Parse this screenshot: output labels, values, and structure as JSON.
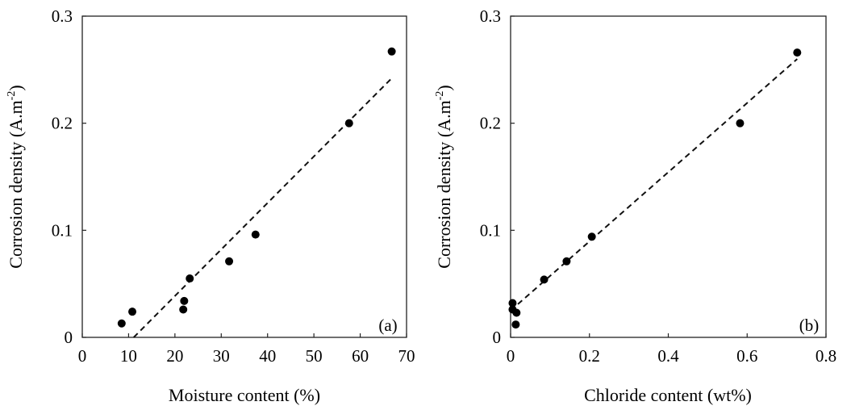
{
  "chart_data": [
    {
      "type": "scatter",
      "panel_label": "(a)",
      "xlabel": "Moisture content (%)",
      "ylabel_main": "Corrosion density (A.m",
      "ylabel_sup": "-2",
      "ylabel_close": ")",
      "xlim": [
        0,
        70
      ],
      "ylim": [
        0,
        0.3
      ],
      "xticks": [
        "0",
        "10",
        "20",
        "30",
        "40",
        "50",
        "60",
        "70"
      ],
      "yticks": [
        "0",
        "0.1",
        "0.2",
        "0.3"
      ],
      "grid": false,
      "points": [
        {
          "x": 8.5,
          "y": 0.013
        },
        {
          "x": 10.8,
          "y": 0.024
        },
        {
          "x": 21.8,
          "y": 0.026
        },
        {
          "x": 22.0,
          "y": 0.034
        },
        {
          "x": 23.2,
          "y": 0.055
        },
        {
          "x": 31.7,
          "y": 0.071
        },
        {
          "x": 37.4,
          "y": 0.096
        },
        {
          "x": 57.6,
          "y": 0.2
        },
        {
          "x": 66.8,
          "y": 0.267
        }
      ],
      "trendline": {
        "style": "dashed",
        "x": [
          11.1,
          66.8
        ],
        "y": [
          0.0,
          0.242
        ]
      }
    },
    {
      "type": "scatter",
      "panel_label": "(b)",
      "xlabel": "Chloride content (wt%)",
      "ylabel_main": "Corrosion density (A.m",
      "ylabel_sup": "-2",
      "ylabel_close": ")",
      "xlim": [
        0,
        0.8
      ],
      "ylim": [
        0,
        0.3
      ],
      "xticks": [
        "0",
        "0.2",
        "0.4",
        "0.6",
        "0.8"
      ],
      "yticks": [
        "0",
        "0.1",
        "0.2",
        "0.3"
      ],
      "grid": false,
      "points": [
        {
          "x": 0.005,
          "y": 0.032
        },
        {
          "x": 0.005,
          "y": 0.026
        },
        {
          "x": 0.015,
          "y": 0.023
        },
        {
          "x": 0.013,
          "y": 0.012
        },
        {
          "x": 0.085,
          "y": 0.054
        },
        {
          "x": 0.142,
          "y": 0.071
        },
        {
          "x": 0.206,
          "y": 0.094
        },
        {
          "x": 0.582,
          "y": 0.2
        },
        {
          "x": 0.727,
          "y": 0.266
        }
      ],
      "trendline": {
        "style": "dashed",
        "x": [
          0.0,
          0.727
        ],
        "y": [
          0.025,
          0.26
        ]
      }
    }
  ]
}
